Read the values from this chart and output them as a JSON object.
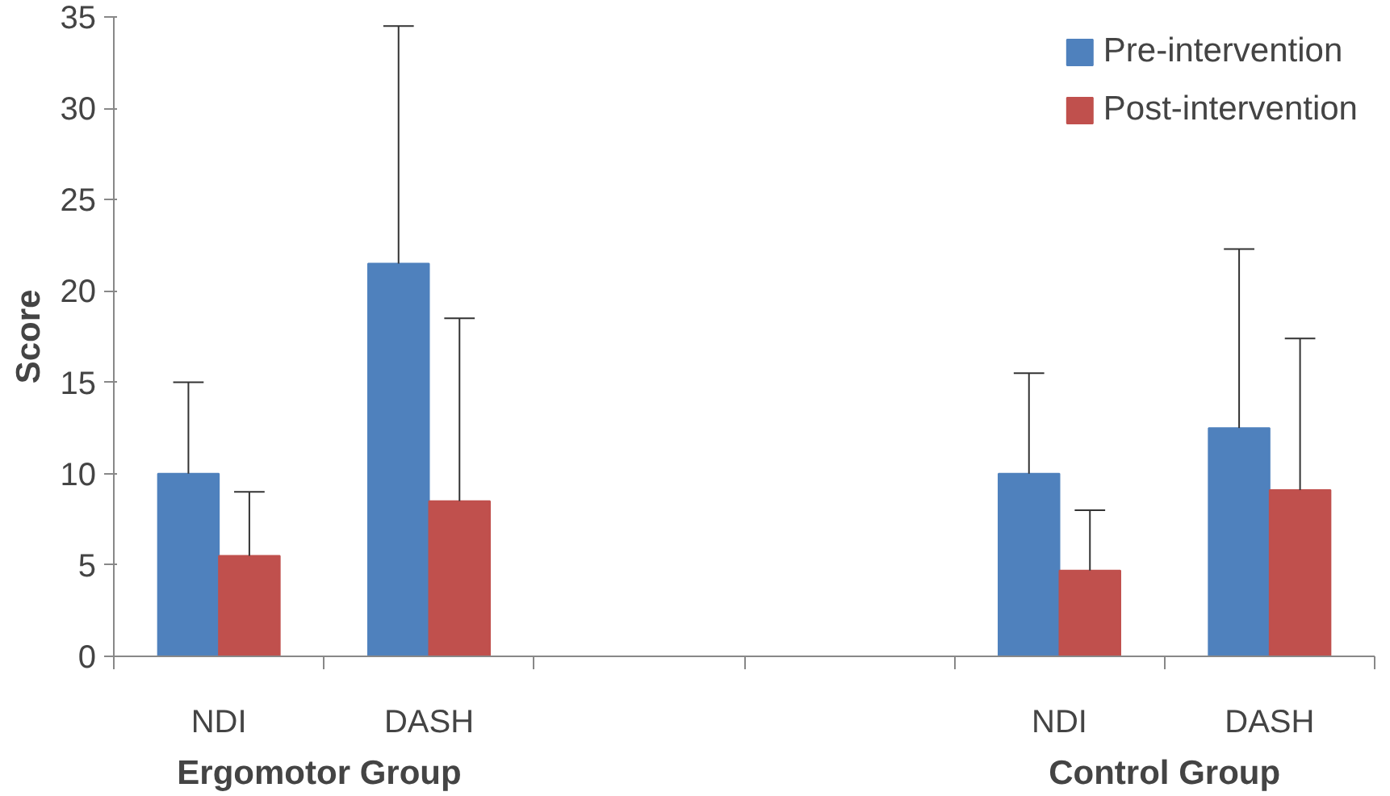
{
  "chart_data": {
    "type": "bar",
    "ylabel": "Score",
    "categories": [
      "NDI",
      "DASH",
      null,
      null,
      "NDI",
      "DASH"
    ],
    "series": [
      {
        "name": "Pre-intervention",
        "color": "#4f81bd",
        "values": [
          10,
          21.5,
          null,
          null,
          10,
          12.5
        ],
        "errors": [
          [
            10,
            15
          ],
          [
            21.5,
            34.5
          ],
          null,
          null,
          [
            10,
            15.5
          ],
          [
            12.5,
            22.3
          ]
        ]
      },
      {
        "name": "Post-intervention",
        "color": "#c0504d",
        "values": [
          5.5,
          8.5,
          null,
          null,
          4.7,
          9.1
        ],
        "errors": [
          [
            5.5,
            9
          ],
          [
            8.5,
            18.5
          ],
          null,
          null,
          [
            4.7,
            8
          ],
          [
            9.1,
            17.4
          ]
        ]
      }
    ],
    "ylim": [
      0,
      35
    ],
    "yticks": [
      0,
      5,
      10,
      15,
      20,
      25,
      30,
      35
    ],
    "legend": "top right",
    "annotations": [
      "Ergomotor  Group",
      "Control Group"
    ]
  }
}
